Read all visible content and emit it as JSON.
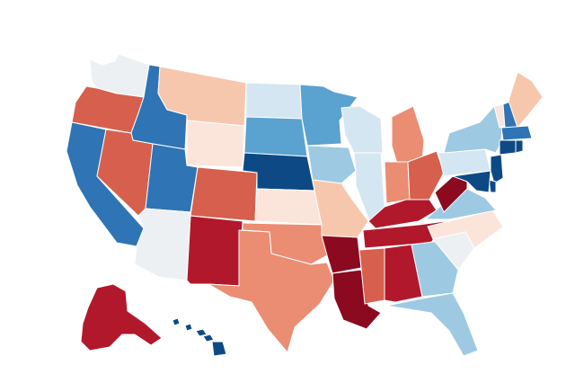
{
  "map": {
    "type": "choropleth",
    "region": "United States",
    "palette": {
      "dark_red": "#8b0a1f",
      "red": "#b2182b",
      "red_orange": "#d6604d",
      "salmon": "#ea8d73",
      "peach": "#f7c7ad",
      "pale_peach": "#fbe5da",
      "near_white": "#ecf0f3",
      "pale_blue": "#d4e6f1",
      "light_blue": "#9ec9e2",
      "mid_blue": "#5aa2d0",
      "blue": "#2f74b5",
      "dark_blue": "#0d4a85"
    },
    "states": [
      {
        "id": "WA",
        "class": "near_white"
      },
      {
        "id": "OR",
        "class": "red_orange"
      },
      {
        "id": "CA",
        "class": "blue"
      },
      {
        "id": "ID",
        "class": "blue"
      },
      {
        "id": "NV",
        "class": "red_orange"
      },
      {
        "id": "UT",
        "class": "blue"
      },
      {
        "id": "AZ",
        "class": "near_white"
      },
      {
        "id": "MT",
        "class": "peach"
      },
      {
        "id": "WY",
        "class": "pale_peach"
      },
      {
        "id": "CO",
        "class": "red_orange"
      },
      {
        "id": "NM",
        "class": "red"
      },
      {
        "id": "ND",
        "class": "pale_blue"
      },
      {
        "id": "SD",
        "class": "mid_blue"
      },
      {
        "id": "NE",
        "class": "dark_blue"
      },
      {
        "id": "KS",
        "class": "pale_peach"
      },
      {
        "id": "OK",
        "class": "salmon"
      },
      {
        "id": "TX",
        "class": "salmon"
      },
      {
        "id": "MN",
        "class": "mid_blue"
      },
      {
        "id": "IA",
        "class": "light_blue"
      },
      {
        "id": "MO",
        "class": "peach"
      },
      {
        "id": "AR",
        "class": "dark_red"
      },
      {
        "id": "LA",
        "class": "dark_red"
      },
      {
        "id": "WI",
        "class": "pale_blue"
      },
      {
        "id": "IL",
        "class": "pale_blue"
      },
      {
        "id": "MI",
        "class": "salmon"
      },
      {
        "id": "IN",
        "class": "salmon"
      },
      {
        "id": "OH",
        "class": "red_orange"
      },
      {
        "id": "KY",
        "class": "red"
      },
      {
        "id": "TN",
        "class": "red"
      },
      {
        "id": "MS",
        "class": "red_orange"
      },
      {
        "id": "AL",
        "class": "red"
      },
      {
        "id": "GA",
        "class": "light_blue"
      },
      {
        "id": "FL",
        "class": "light_blue"
      },
      {
        "id": "SC",
        "class": "near_white"
      },
      {
        "id": "NC",
        "class": "pale_peach"
      },
      {
        "id": "VA",
        "class": "light_blue"
      },
      {
        "id": "WV",
        "class": "dark_red"
      },
      {
        "id": "PA",
        "class": "pale_blue"
      },
      {
        "id": "NY",
        "class": "light_blue"
      },
      {
        "id": "VT",
        "class": "pale_peach"
      },
      {
        "id": "NH",
        "class": "blue"
      },
      {
        "id": "ME",
        "class": "peach"
      },
      {
        "id": "MA",
        "class": "blue"
      },
      {
        "id": "CT",
        "class": "dark_blue"
      },
      {
        "id": "RI",
        "class": "dark_blue"
      },
      {
        "id": "NJ",
        "class": "dark_blue"
      },
      {
        "id": "DE",
        "class": "dark_blue"
      },
      {
        "id": "MD",
        "class": "dark_blue"
      },
      {
        "id": "AK",
        "class": "red"
      },
      {
        "id": "HI",
        "class": "dark_blue"
      }
    ]
  }
}
